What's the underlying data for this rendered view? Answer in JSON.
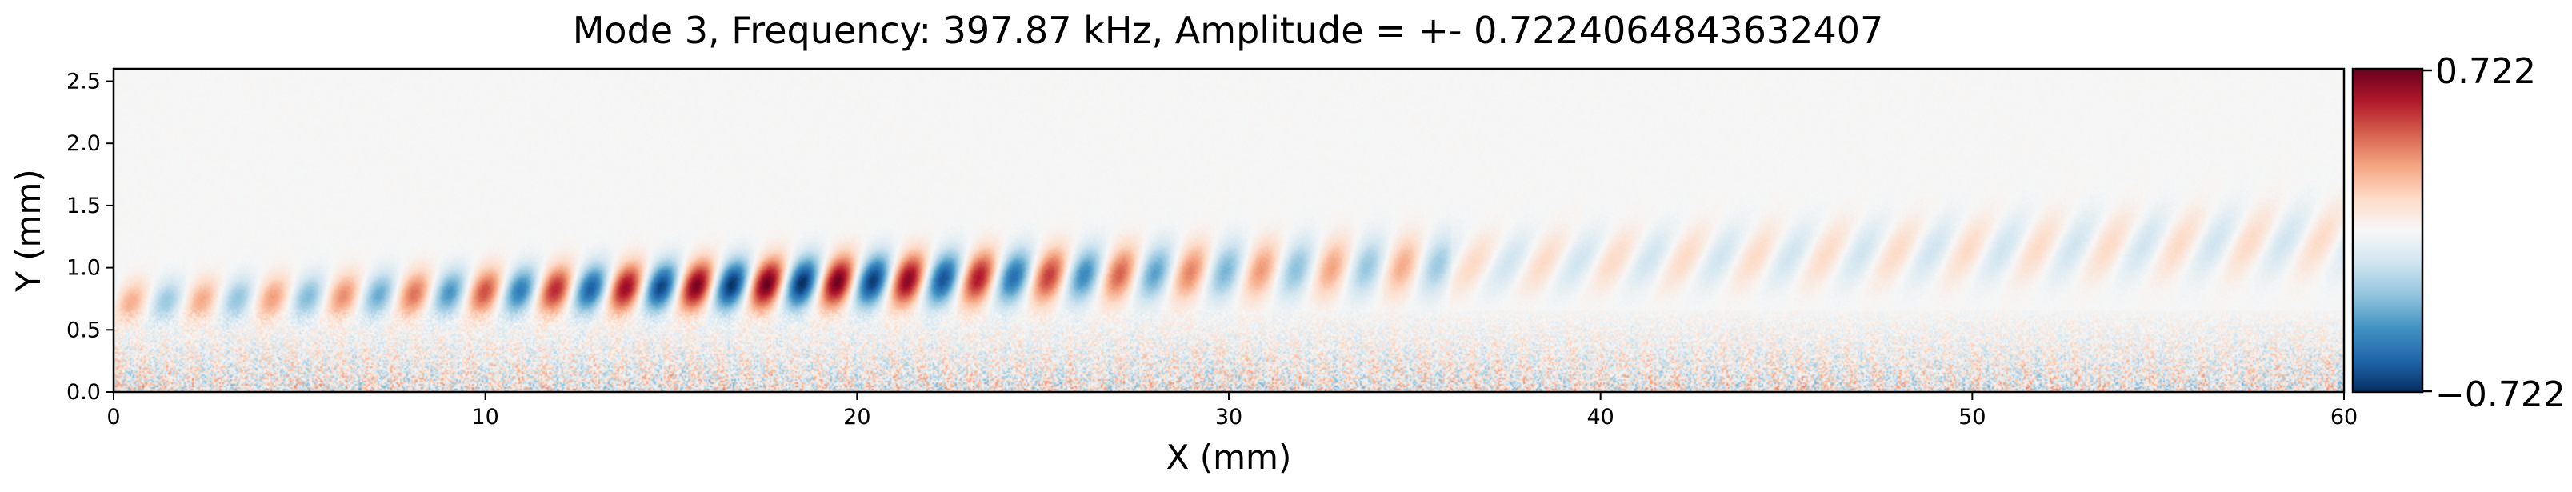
{
  "chart_data": {
    "type": "heatmap",
    "title": "Mode 3, Frequency: 397.87 kHz, Amplitude = +- 0.7224064843632407",
    "xlabel": "X (mm)",
    "ylabel": "Y (mm)",
    "xlim": [
      0,
      60
    ],
    "ylim": [
      0,
      2.6
    ],
    "xticks": [
      0,
      10,
      20,
      30,
      40,
      50,
      60
    ],
    "xtick_labels": [
      "0",
      "10",
      "20",
      "30",
      "40",
      "50",
      "60"
    ],
    "yticks": [
      0.0,
      0.5,
      1.0,
      1.5,
      2.0,
      2.5
    ],
    "ytick_labels": [
      "0.0",
      "0.5",
      "1.0",
      "1.5",
      "2.0",
      "2.5"
    ],
    "colormap": "RdBu_r",
    "colorbar": {
      "min": -0.722,
      "max": 0.722,
      "tick_labels": [
        "0.722",
        "−0.722"
      ],
      "colors": [
        "#67001f",
        "#b2182b",
        "#d6604d",
        "#f4a582",
        "#fddbc7",
        "#f7f7f7",
        "#d1e5f0",
        "#92c5de",
        "#4393c3",
        "#2166ac",
        "#053061"
      ]
    },
    "field_description": {
      "wave_band_y_mm": [
        0.6,
        1.1
      ],
      "wavelength_mm": 1.9,
      "peak_x_mm": 18,
      "noise_band_y_mm": [
        0.0,
        0.6
      ],
      "background": "near-zero above 1.5 mm"
    }
  }
}
